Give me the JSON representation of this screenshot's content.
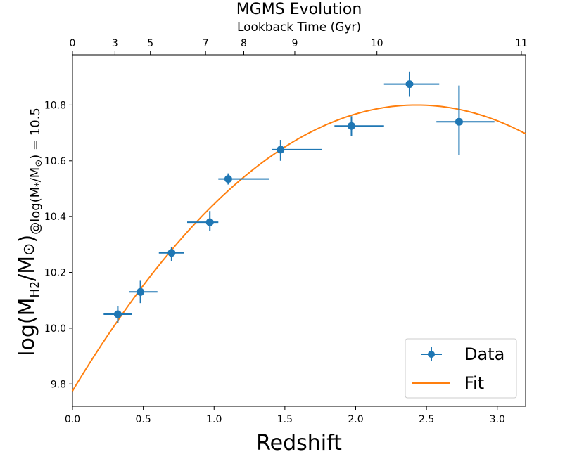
{
  "chart_data": {
    "type": "scatter",
    "title": "MGMS Evolution",
    "top_axis_label": "Lookback Time (Gyr)",
    "top_ticks": [
      {
        "label": "0",
        "z": 0.0
      },
      {
        "label": "3",
        "z": 0.3
      },
      {
        "label": "5",
        "z": 0.55
      },
      {
        "label": "7",
        "z": 0.94
      },
      {
        "label": "8",
        "z": 1.21
      },
      {
        "label": "9",
        "z": 1.57
      },
      {
        "label": "10",
        "z": 2.15
      },
      {
        "label": "11",
        "z": 3.17
      }
    ],
    "xlabel": "Redshift",
    "ylabel": {
      "main": "log(M",
      "main_sub": "H2",
      "main_mid": "/M",
      "main_sym": "⊙",
      "main_close": ")",
      "cond": "@log(M",
      "cond_sub": "*",
      "cond_mid": "/M",
      "cond_sub2": "⊙",
      "cond_close": ") = 10.5"
    },
    "xlim": [
      0.0,
      3.2
    ],
    "ylim": [
      9.72,
      10.98
    ],
    "xticks": [
      {
        "value": 0.0,
        "label": "0.0"
      },
      {
        "value": 0.5,
        "label": "0.5"
      },
      {
        "value": 1.0,
        "label": "1.0"
      },
      {
        "value": 1.5,
        "label": "1.5"
      },
      {
        "value": 2.0,
        "label": "2.0"
      },
      {
        "value": 2.5,
        "label": "2.5"
      },
      {
        "value": 3.0,
        "label": "3.0"
      }
    ],
    "yticks": [
      {
        "value": 9.8,
        "label": "9.8"
      },
      {
        "value": 10.0,
        "label": "10.0"
      },
      {
        "value": 10.2,
        "label": "10.2"
      },
      {
        "value": 10.4,
        "label": "10.4"
      },
      {
        "value": 10.6,
        "label": "10.6"
      },
      {
        "value": 10.8,
        "label": "10.8"
      }
    ],
    "series": [
      {
        "name": "Data",
        "color": "#1f77b4",
        "points": [
          {
            "x": 0.32,
            "y": 10.05,
            "xerr": [
              0.22,
              0.42
            ],
            "yerr": [
              10.02,
              10.08
            ]
          },
          {
            "x": 0.48,
            "y": 10.13,
            "xerr": [
              0.4,
              0.6
            ],
            "yerr": [
              10.09,
              10.17
            ]
          },
          {
            "x": 0.7,
            "y": 10.27,
            "xerr": [
              0.61,
              0.79
            ],
            "yerr": [
              10.24,
              10.29
            ]
          },
          {
            "x": 0.97,
            "y": 10.38,
            "xerr": [
              0.81,
              1.03
            ],
            "yerr": [
              10.35,
              10.42
            ]
          },
          {
            "x": 1.1,
            "y": 10.535,
            "xerr": [
              1.03,
              1.39
            ],
            "yerr": [
              10.515,
              10.555
            ]
          },
          {
            "x": 1.47,
            "y": 10.64,
            "xerr": [
              1.41,
              1.76
            ],
            "yerr": [
              10.6,
              10.675
            ]
          },
          {
            "x": 1.97,
            "y": 10.725,
            "xerr": [
              1.85,
              2.2
            ],
            "yerr": [
              10.69,
              10.76
            ]
          },
          {
            "x": 2.38,
            "y": 10.875,
            "xerr": [
              2.2,
              2.59
            ],
            "yerr": [
              10.83,
              10.92
            ]
          },
          {
            "x": 2.73,
            "y": 10.74,
            "xerr": [
              2.57,
              2.98
            ],
            "yerr": [
              10.62,
              10.87
            ]
          }
        ]
      },
      {
        "name": "Fit",
        "color": "#ff7f0e",
        "curve": {
          "type": "quadratic",
          "peak_x": 2.43,
          "peak_y": 10.8,
          "y_at_0": 9.775
        }
      }
    ],
    "legend": {
      "position": "bottom-right",
      "entries": [
        "Data",
        "Fit"
      ]
    }
  }
}
